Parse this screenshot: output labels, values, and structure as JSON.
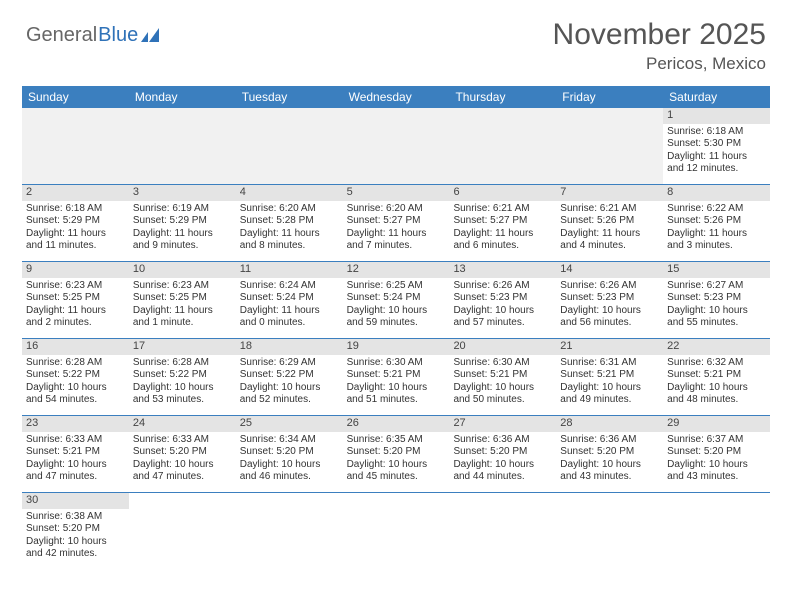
{
  "logo": {
    "general": "General",
    "blue": "Blue"
  },
  "title": "November 2025",
  "location": "Pericos, Mexico",
  "colors": {
    "header_bg": "#3b7fbf",
    "header_text": "#ffffff",
    "date_bar_bg": "#e4e4e4",
    "empty_bg": "#f1f1f1",
    "row_border": "#3b7fbf",
    "body_text": "#333333",
    "title_text": "#555555"
  },
  "day_names": [
    "Sunday",
    "Monday",
    "Tuesday",
    "Wednesday",
    "Thursday",
    "Friday",
    "Saturday"
  ],
  "weeks": [
    [
      null,
      null,
      null,
      null,
      null,
      null,
      {
        "d": "1",
        "sr": "Sunrise: 6:18 AM",
        "ss": "Sunset: 5:30 PM",
        "dl": "Daylight: 11 hours and 12 minutes."
      }
    ],
    [
      {
        "d": "2",
        "sr": "Sunrise: 6:18 AM",
        "ss": "Sunset: 5:29 PM",
        "dl": "Daylight: 11 hours and 11 minutes."
      },
      {
        "d": "3",
        "sr": "Sunrise: 6:19 AM",
        "ss": "Sunset: 5:29 PM",
        "dl": "Daylight: 11 hours and 9 minutes."
      },
      {
        "d": "4",
        "sr": "Sunrise: 6:20 AM",
        "ss": "Sunset: 5:28 PM",
        "dl": "Daylight: 11 hours and 8 minutes."
      },
      {
        "d": "5",
        "sr": "Sunrise: 6:20 AM",
        "ss": "Sunset: 5:27 PM",
        "dl": "Daylight: 11 hours and 7 minutes."
      },
      {
        "d": "6",
        "sr": "Sunrise: 6:21 AM",
        "ss": "Sunset: 5:27 PM",
        "dl": "Daylight: 11 hours and 6 minutes."
      },
      {
        "d": "7",
        "sr": "Sunrise: 6:21 AM",
        "ss": "Sunset: 5:26 PM",
        "dl": "Daylight: 11 hours and 4 minutes."
      },
      {
        "d": "8",
        "sr": "Sunrise: 6:22 AM",
        "ss": "Sunset: 5:26 PM",
        "dl": "Daylight: 11 hours and 3 minutes."
      }
    ],
    [
      {
        "d": "9",
        "sr": "Sunrise: 6:23 AM",
        "ss": "Sunset: 5:25 PM",
        "dl": "Daylight: 11 hours and 2 minutes."
      },
      {
        "d": "10",
        "sr": "Sunrise: 6:23 AM",
        "ss": "Sunset: 5:25 PM",
        "dl": "Daylight: 11 hours and 1 minute."
      },
      {
        "d": "11",
        "sr": "Sunrise: 6:24 AM",
        "ss": "Sunset: 5:24 PM",
        "dl": "Daylight: 11 hours and 0 minutes."
      },
      {
        "d": "12",
        "sr": "Sunrise: 6:25 AM",
        "ss": "Sunset: 5:24 PM",
        "dl": "Daylight: 10 hours and 59 minutes."
      },
      {
        "d": "13",
        "sr": "Sunrise: 6:26 AM",
        "ss": "Sunset: 5:23 PM",
        "dl": "Daylight: 10 hours and 57 minutes."
      },
      {
        "d": "14",
        "sr": "Sunrise: 6:26 AM",
        "ss": "Sunset: 5:23 PM",
        "dl": "Daylight: 10 hours and 56 minutes."
      },
      {
        "d": "15",
        "sr": "Sunrise: 6:27 AM",
        "ss": "Sunset: 5:23 PM",
        "dl": "Daylight: 10 hours and 55 minutes."
      }
    ],
    [
      {
        "d": "16",
        "sr": "Sunrise: 6:28 AM",
        "ss": "Sunset: 5:22 PM",
        "dl": "Daylight: 10 hours and 54 minutes."
      },
      {
        "d": "17",
        "sr": "Sunrise: 6:28 AM",
        "ss": "Sunset: 5:22 PM",
        "dl": "Daylight: 10 hours and 53 minutes."
      },
      {
        "d": "18",
        "sr": "Sunrise: 6:29 AM",
        "ss": "Sunset: 5:22 PM",
        "dl": "Daylight: 10 hours and 52 minutes."
      },
      {
        "d": "19",
        "sr": "Sunrise: 6:30 AM",
        "ss": "Sunset: 5:21 PM",
        "dl": "Daylight: 10 hours and 51 minutes."
      },
      {
        "d": "20",
        "sr": "Sunrise: 6:30 AM",
        "ss": "Sunset: 5:21 PM",
        "dl": "Daylight: 10 hours and 50 minutes."
      },
      {
        "d": "21",
        "sr": "Sunrise: 6:31 AM",
        "ss": "Sunset: 5:21 PM",
        "dl": "Daylight: 10 hours and 49 minutes."
      },
      {
        "d": "22",
        "sr": "Sunrise: 6:32 AM",
        "ss": "Sunset: 5:21 PM",
        "dl": "Daylight: 10 hours and 48 minutes."
      }
    ],
    [
      {
        "d": "23",
        "sr": "Sunrise: 6:33 AM",
        "ss": "Sunset: 5:21 PM",
        "dl": "Daylight: 10 hours and 47 minutes."
      },
      {
        "d": "24",
        "sr": "Sunrise: 6:33 AM",
        "ss": "Sunset: 5:20 PM",
        "dl": "Daylight: 10 hours and 47 minutes."
      },
      {
        "d": "25",
        "sr": "Sunrise: 6:34 AM",
        "ss": "Sunset: 5:20 PM",
        "dl": "Daylight: 10 hours and 46 minutes."
      },
      {
        "d": "26",
        "sr": "Sunrise: 6:35 AM",
        "ss": "Sunset: 5:20 PM",
        "dl": "Daylight: 10 hours and 45 minutes."
      },
      {
        "d": "27",
        "sr": "Sunrise: 6:36 AM",
        "ss": "Sunset: 5:20 PM",
        "dl": "Daylight: 10 hours and 44 minutes."
      },
      {
        "d": "28",
        "sr": "Sunrise: 6:36 AM",
        "ss": "Sunset: 5:20 PM",
        "dl": "Daylight: 10 hours and 43 minutes."
      },
      {
        "d": "29",
        "sr": "Sunrise: 6:37 AM",
        "ss": "Sunset: 5:20 PM",
        "dl": "Daylight: 10 hours and 43 minutes."
      }
    ],
    [
      {
        "d": "30",
        "sr": "Sunrise: 6:38 AM",
        "ss": "Sunset: 5:20 PM",
        "dl": "Daylight: 10 hours and 42 minutes."
      },
      null,
      null,
      null,
      null,
      null,
      null
    ]
  ]
}
